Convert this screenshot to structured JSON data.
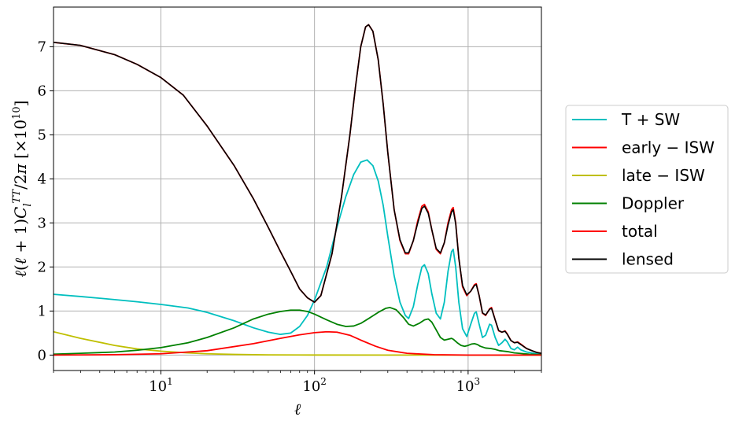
{
  "chart_data": {
    "type": "line",
    "xlabel": "ℓ",
    "ylabel": "ℓ(ℓ+1)C_l^{TT}/2π  [×10^{10}]",
    "x_scale": "log",
    "xlim": [
      2,
      3000
    ],
    "ylim": [
      -0.35,
      7.9
    ],
    "grid": true,
    "legend_position": "outside-right",
    "x_ticks": [
      {
        "value": 10,
        "label": "10",
        "exp": "1"
      },
      {
        "value": 100,
        "label": "10",
        "exp": "2"
      },
      {
        "value": 1000,
        "label": "10",
        "exp": "3"
      }
    ],
    "y_ticks": [
      0,
      1,
      2,
      3,
      4,
      5,
      6,
      7
    ],
    "series": [
      {
        "name": "T + SW",
        "legend_label": "T+SW",
        "color": "#00bfbf",
        "points": [
          [
            2,
            1.38
          ],
          [
            3,
            1.33
          ],
          [
            5,
            1.26
          ],
          [
            7,
            1.21
          ],
          [
            10,
            1.15
          ],
          [
            15,
            1.07
          ],
          [
            20,
            0.97
          ],
          [
            30,
            0.78
          ],
          [
            40,
            0.62
          ],
          [
            50,
            0.52
          ],
          [
            60,
            0.47
          ],
          [
            70,
            0.5
          ],
          [
            80,
            0.65
          ],
          [
            90,
            0.9
          ],
          [
            100,
            1.25
          ],
          [
            120,
            2.0
          ],
          [
            140,
            2.9
          ],
          [
            160,
            3.6
          ],
          [
            180,
            4.1
          ],
          [
            200,
            4.38
          ],
          [
            220,
            4.43
          ],
          [
            240,
            4.3
          ],
          [
            260,
            3.95
          ],
          [
            280,
            3.4
          ],
          [
            300,
            2.7
          ],
          [
            330,
            1.8
          ],
          [
            360,
            1.2
          ],
          [
            390,
            0.9
          ],
          [
            410,
            0.83
          ],
          [
            440,
            1.1
          ],
          [
            470,
            1.6
          ],
          [
            500,
            2.0
          ],
          [
            520,
            2.05
          ],
          [
            550,
            1.85
          ],
          [
            580,
            1.4
          ],
          [
            620,
            0.95
          ],
          [
            660,
            0.82
          ],
          [
            700,
            1.2
          ],
          [
            740,
            1.9
          ],
          [
            780,
            2.35
          ],
          [
            800,
            2.4
          ],
          [
            830,
            2.0
          ],
          [
            870,
            1.2
          ],
          [
            920,
            0.6
          ],
          [
            980,
            0.42
          ],
          [
            1040,
            0.7
          ],
          [
            1100,
            0.95
          ],
          [
            1130,
            0.98
          ],
          [
            1180,
            0.7
          ],
          [
            1240,
            0.4
          ],
          [
            1300,
            0.45
          ],
          [
            1380,
            0.7
          ],
          [
            1420,
            0.68
          ],
          [
            1500,
            0.4
          ],
          [
            1580,
            0.22
          ],
          [
            1660,
            0.28
          ],
          [
            1740,
            0.36
          ],
          [
            1800,
            0.3
          ],
          [
            1900,
            0.15
          ],
          [
            2000,
            0.12
          ],
          [
            2100,
            0.18
          ],
          [
            2200,
            0.12
          ],
          [
            2400,
            0.07
          ],
          [
            2600,
            0.05
          ],
          [
            2800,
            0.03
          ],
          [
            3000,
            0.02
          ]
        ]
      },
      {
        "name": "early − ISW",
        "legend_label": "early−ISW",
        "color": "#ff0000",
        "points": [
          [
            2,
            7.1
          ],
          [
            3,
            7.03
          ],
          [
            5,
            6.82
          ],
          [
            7,
            6.6
          ],
          [
            10,
            6.3
          ],
          [
            14,
            5.9
          ],
          [
            20,
            5.2
          ],
          [
            30,
            4.3
          ],
          [
            40,
            3.55
          ],
          [
            50,
            2.9
          ],
          [
            60,
            2.35
          ],
          [
            70,
            1.9
          ],
          [
            80,
            1.5
          ],
          [
            90,
            1.3
          ],
          [
            100,
            1.2
          ],
          [
            110,
            1.35
          ],
          [
            130,
            2.3
          ],
          [
            150,
            3.6
          ],
          [
            170,
            5.0
          ],
          [
            185,
            6.1
          ],
          [
            200,
            7.0
          ],
          [
            215,
            7.45
          ],
          [
            225,
            7.5
          ],
          [
            240,
            7.35
          ],
          [
            260,
            6.7
          ],
          [
            280,
            5.7
          ],
          [
            300,
            4.6
          ],
          [
            330,
            3.3
          ],
          [
            360,
            2.6
          ],
          [
            390,
            2.3
          ],
          [
            410,
            2.3
          ],
          [
            440,
            2.6
          ],
          [
            470,
            3.05
          ],
          [
            500,
            3.38
          ],
          [
            520,
            3.42
          ],
          [
            550,
            3.25
          ],
          [
            580,
            2.85
          ],
          [
            620,
            2.4
          ],
          [
            660,
            2.3
          ],
          [
            700,
            2.55
          ],
          [
            740,
            3.0
          ],
          [
            780,
            3.3
          ],
          [
            800,
            3.35
          ],
          [
            830,
            3.0
          ],
          [
            870,
            2.2
          ],
          [
            920,
            1.55
          ],
          [
            980,
            1.35
          ],
          [
            1040,
            1.45
          ],
          [
            1100,
            1.6
          ],
          [
            1130,
            1.62
          ],
          [
            1180,
            1.35
          ],
          [
            1240,
            0.95
          ],
          [
            1300,
            0.9
          ],
          [
            1380,
            1.05
          ],
          [
            1420,
            1.08
          ],
          [
            1500,
            0.8
          ],
          [
            1580,
            0.55
          ],
          [
            1660,
            0.52
          ],
          [
            1740,
            0.55
          ],
          [
            1800,
            0.48
          ],
          [
            1900,
            0.33
          ],
          [
            2000,
            0.28
          ],
          [
            2100,
            0.3
          ],
          [
            2200,
            0.25
          ],
          [
            2400,
            0.15
          ],
          [
            2600,
            0.1
          ],
          [
            2800,
            0.06
          ],
          [
            3000,
            0.04
          ]
        ]
      },
      {
        "name": "late − ISW",
        "legend_label": "late−ISW",
        "color": "#bfbf00",
        "points": [
          [
            2,
            0.53
          ],
          [
            3,
            0.38
          ],
          [
            5,
            0.22
          ],
          [
            7,
            0.14
          ],
          [
            10,
            0.09
          ],
          [
            15,
            0.05
          ],
          [
            20,
            0.03
          ],
          [
            30,
            0.015
          ],
          [
            50,
            0.005
          ],
          [
            100,
            0.002
          ],
          [
            300,
            0.0
          ],
          [
            1000,
            0.0
          ],
          [
            3000,
            0.0
          ]
        ]
      },
      {
        "name": "Doppler",
        "legend_label": "Doppler",
        "color": "#008000",
        "points": [
          [
            2,
            0.02
          ],
          [
            3,
            0.04
          ],
          [
            5,
            0.07
          ],
          [
            7,
            0.11
          ],
          [
            10,
            0.17
          ],
          [
            15,
            0.28
          ],
          [
            20,
            0.4
          ],
          [
            30,
            0.62
          ],
          [
            40,
            0.82
          ],
          [
            50,
            0.93
          ],
          [
            60,
            0.99
          ],
          [
            70,
            1.02
          ],
          [
            80,
            1.02
          ],
          [
            90,
            0.99
          ],
          [
            100,
            0.93
          ],
          [
            120,
            0.8
          ],
          [
            140,
            0.7
          ],
          [
            160,
            0.65
          ],
          [
            180,
            0.66
          ],
          [
            200,
            0.72
          ],
          [
            230,
            0.85
          ],
          [
            260,
            0.97
          ],
          [
            290,
            1.06
          ],
          [
            310,
            1.08
          ],
          [
            340,
            1.03
          ],
          [
            380,
            0.85
          ],
          [
            410,
            0.7
          ],
          [
            440,
            0.66
          ],
          [
            480,
            0.72
          ],
          [
            520,
            0.8
          ],
          [
            550,
            0.82
          ],
          [
            580,
            0.75
          ],
          [
            620,
            0.57
          ],
          [
            660,
            0.4
          ],
          [
            700,
            0.34
          ],
          [
            740,
            0.36
          ],
          [
            780,
            0.38
          ],
          [
            800,
            0.36
          ],
          [
            850,
            0.28
          ],
          [
            900,
            0.22
          ],
          [
            950,
            0.2
          ],
          [
            1000,
            0.22
          ],
          [
            1050,
            0.25
          ],
          [
            1100,
            0.26
          ],
          [
            1150,
            0.24
          ],
          [
            1200,
            0.2
          ],
          [
            1300,
            0.16
          ],
          [
            1400,
            0.15
          ],
          [
            1500,
            0.13
          ],
          [
            1600,
            0.1
          ],
          [
            1700,
            0.09
          ],
          [
            1800,
            0.08
          ],
          [
            2000,
            0.05
          ],
          [
            2500,
            0.02
          ],
          [
            3000,
            0.01
          ]
        ]
      },
      {
        "name": "total",
        "legend_label": "total",
        "color": "#ff0000",
        "points": [
          [
            2,
            0.0
          ],
          [
            5,
            0.01
          ],
          [
            10,
            0.03
          ],
          [
            20,
            0.1
          ],
          [
            40,
            0.26
          ],
          [
            60,
            0.38
          ],
          [
            80,
            0.46
          ],
          [
            100,
            0.51
          ],
          [
            120,
            0.53
          ],
          [
            140,
            0.52
          ],
          [
            170,
            0.45
          ],
          [
            200,
            0.34
          ],
          [
            250,
            0.2
          ],
          [
            300,
            0.11
          ],
          [
            400,
            0.04
          ],
          [
            600,
            0.01
          ],
          [
            1000,
            0.0
          ],
          [
            3000,
            0.0
          ]
        ]
      },
      {
        "name": "lensed",
        "legend_label": "lensed",
        "color": "#000000",
        "points": [
          [
            2,
            7.1
          ],
          [
            3,
            7.03
          ],
          [
            5,
            6.82
          ],
          [
            7,
            6.6
          ],
          [
            10,
            6.3
          ],
          [
            14,
            5.9
          ],
          [
            20,
            5.2
          ],
          [
            30,
            4.3
          ],
          [
            40,
            3.55
          ],
          [
            50,
            2.9
          ],
          [
            60,
            2.35
          ],
          [
            70,
            1.9
          ],
          [
            80,
            1.5
          ],
          [
            90,
            1.3
          ],
          [
            100,
            1.2
          ],
          [
            110,
            1.35
          ],
          [
            130,
            2.3
          ],
          [
            150,
            3.6
          ],
          [
            170,
            5.0
          ],
          [
            185,
            6.1
          ],
          [
            200,
            7.0
          ],
          [
            215,
            7.45
          ],
          [
            225,
            7.5
          ],
          [
            240,
            7.35
          ],
          [
            260,
            6.7
          ],
          [
            280,
            5.7
          ],
          [
            300,
            4.6
          ],
          [
            330,
            3.3
          ],
          [
            360,
            2.62
          ],
          [
            390,
            2.32
          ],
          [
            410,
            2.32
          ],
          [
            440,
            2.6
          ],
          [
            470,
            3.0
          ],
          [
            500,
            3.33
          ],
          [
            520,
            3.38
          ],
          [
            550,
            3.22
          ],
          [
            580,
            2.85
          ],
          [
            620,
            2.42
          ],
          [
            660,
            2.32
          ],
          [
            700,
            2.55
          ],
          [
            740,
            2.95
          ],
          [
            780,
            3.25
          ],
          [
            800,
            3.3
          ],
          [
            830,
            2.98
          ],
          [
            870,
            2.2
          ],
          [
            920,
            1.58
          ],
          [
            980,
            1.37
          ],
          [
            1040,
            1.45
          ],
          [
            1100,
            1.58
          ],
          [
            1130,
            1.6
          ],
          [
            1180,
            1.35
          ],
          [
            1240,
            0.96
          ],
          [
            1300,
            0.91
          ],
          [
            1380,
            1.04
          ],
          [
            1420,
            1.06
          ],
          [
            1500,
            0.8
          ],
          [
            1580,
            0.56
          ],
          [
            1660,
            0.52
          ],
          [
            1740,
            0.54
          ],
          [
            1800,
            0.47
          ],
          [
            1900,
            0.33
          ],
          [
            2000,
            0.28
          ],
          [
            2100,
            0.29
          ],
          [
            2200,
            0.24
          ],
          [
            2400,
            0.15
          ],
          [
            2600,
            0.1
          ],
          [
            2800,
            0.06
          ],
          [
            3000,
            0.04
          ]
        ]
      }
    ]
  }
}
